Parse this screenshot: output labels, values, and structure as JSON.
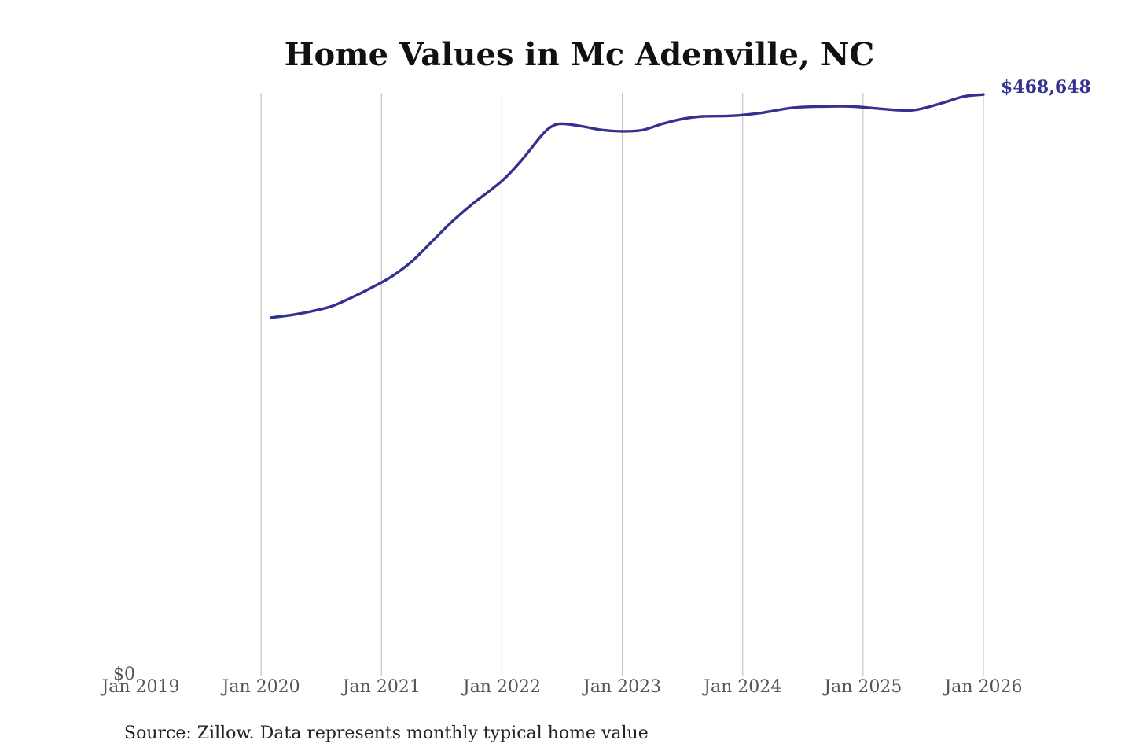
{
  "chart_data": {
    "type": "line",
    "title": "Home Values in Mc Adenville, NC",
    "xlabel": "",
    "ylabel": "",
    "x_ticks": [
      "Jan 2019",
      "Jan 2020",
      "Jan 2021",
      "Jan 2022",
      "Jan 2023",
      "Jan 2024",
      "Jan 2025",
      "Jan 2026"
    ],
    "y_ticks": [
      {
        "value": 0,
        "label": "$0"
      }
    ],
    "xlim": [
      "2019-01",
      "2026-01"
    ],
    "ylim": [
      0,
      470000
    ],
    "grid": "vertical",
    "line_color": "#34318f",
    "end_label": "$468,648",
    "series": [
      {
        "points": [
          {
            "x": "2020-02",
            "y": 289000
          },
          {
            "x": "2020-04",
            "y": 291000
          },
          {
            "x": "2020-06",
            "y": 294000
          },
          {
            "x": "2020-08",
            "y": 298000
          },
          {
            "x": "2020-10",
            "y": 305000
          },
          {
            "x": "2020-12",
            "y": 313000
          },
          {
            "x": "2021-02",
            "y": 322000
          },
          {
            "x": "2021-04",
            "y": 334000
          },
          {
            "x": "2021-06",
            "y": 350000
          },
          {
            "x": "2021-08",
            "y": 366000
          },
          {
            "x": "2021-10",
            "y": 380000
          },
          {
            "x": "2022-01",
            "y": 399000
          },
          {
            "x": "2022-03",
            "y": 416000
          },
          {
            "x": "2022-05",
            "y": 436000
          },
          {
            "x": "2022-06",
            "y": 443000
          },
          {
            "x": "2022-07",
            "y": 445000
          },
          {
            "x": "2022-09",
            "y": 443000
          },
          {
            "x": "2022-11",
            "y": 440000
          },
          {
            "x": "2023-01",
            "y": 439000
          },
          {
            "x": "2023-03",
            "y": 440000
          },
          {
            "x": "2023-05",
            "y": 445000
          },
          {
            "x": "2023-07",
            "y": 449000
          },
          {
            "x": "2023-09",
            "y": 451000
          },
          {
            "x": "2023-12",
            "y": 451500
          },
          {
            "x": "2024-03",
            "y": 454000
          },
          {
            "x": "2024-06",
            "y": 458000
          },
          {
            "x": "2024-09",
            "y": 459000
          },
          {
            "x": "2024-12",
            "y": 459000
          },
          {
            "x": "2025-03",
            "y": 457000
          },
          {
            "x": "2025-06",
            "y": 456000
          },
          {
            "x": "2025-09",
            "y": 462000
          },
          {
            "x": "2025-11",
            "y": 467000
          },
          {
            "x": "2026-01",
            "y": 468648
          }
        ]
      }
    ]
  },
  "source": "Source: Zillow. Data represents monthly typical home value"
}
